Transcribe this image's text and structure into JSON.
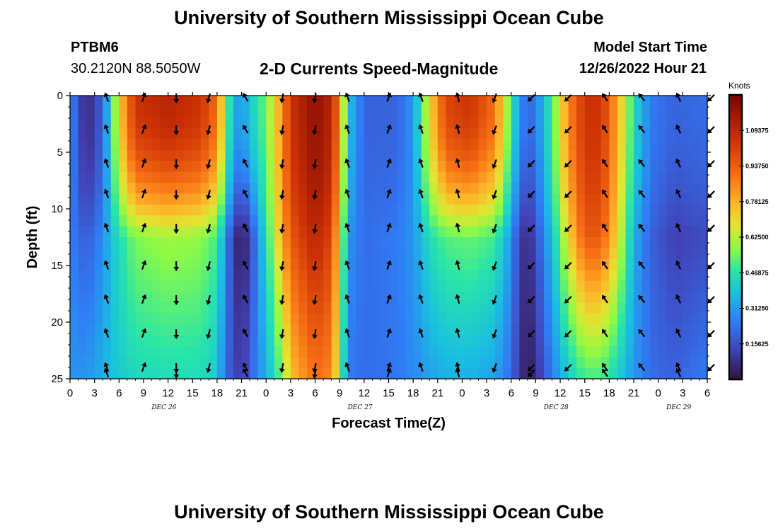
{
  "header": {
    "title": "University of Southern Mississippi Ocean Cube",
    "station_id": "PTBM6",
    "coordinates": "30.2120N  88.5050W",
    "product": "2-D Currents Speed-Magnitude",
    "model_start_label": "Model Start Time",
    "model_start_value": "12/26/2022 Hour 21"
  },
  "footer": {
    "title": "University of Southern Mississippi Ocean Cube"
  },
  "chart_data": {
    "type": "heatmap",
    "xlabel": "Forecast Time(Z)",
    "ylabel": "Depth (ft)",
    "ylim": [
      25,
      0
    ],
    "y_ticks": [
      0,
      5,
      10,
      15,
      20,
      25
    ],
    "x_hours": [
      0,
      3,
      6,
      9,
      12,
      15,
      18,
      21,
      24,
      27,
      30,
      33,
      36,
      39,
      42,
      45,
      48,
      51,
      54,
      57,
      60,
      63,
      66,
      69,
      72,
      75,
      78
    ],
    "x_tick_labels": [
      "0",
      "3",
      "6",
      "9",
      "12",
      "15",
      "18",
      "21",
      "0",
      "3",
      "6",
      "9",
      "12",
      "15",
      "18",
      "21",
      "0",
      "3",
      "6",
      "9",
      "12",
      "15",
      "18",
      "21",
      "0",
      "3",
      "6"
    ],
    "date_labels": [
      {
        "text": "DEC 26",
        "hour": 11.5
      },
      {
        "text": "DEC 27",
        "hour": 35.5
      },
      {
        "text": "DEC 28",
        "hour": 59.5
      },
      {
        "text": "DEC 29",
        "hour": 74.5
      }
    ],
    "colorbar": {
      "title": "Knots",
      "min": 0,
      "max": 1.25,
      "ticks": [
        "0.15625",
        "0.31250",
        "0.46875",
        "0.62500",
        "0.78125",
        "0.93750",
        "1.09375"
      ],
      "tick_values": [
        0.15625,
        0.3125,
        0.46875,
        0.625,
        0.78125,
        0.9375,
        1.09375
      ]
    },
    "speed_profiles_knots": [
      {
        "hour": 0,
        "surface": 0.28,
        "mid": 0.26,
        "bottom": 0.3
      },
      {
        "hour": 2,
        "surface": 0.05,
        "mid": 0.18,
        "bottom": 0.3
      },
      {
        "hour": 4,
        "surface": 0.2,
        "mid": 0.28,
        "bottom": 0.35
      },
      {
        "hour": 5,
        "surface": 0.45,
        "mid": 0.38,
        "bottom": 0.38
      },
      {
        "hour": 6,
        "surface": 0.72,
        "mid": 0.45,
        "bottom": 0.4
      },
      {
        "hour": 8,
        "surface": 1.05,
        "mid": 0.56,
        "bottom": 0.44
      },
      {
        "hour": 12,
        "surface": 1.1,
        "mid": 0.6,
        "bottom": 0.45
      },
      {
        "hour": 16,
        "surface": 1.05,
        "mid": 0.58,
        "bottom": 0.45
      },
      {
        "hour": 18,
        "surface": 0.9,
        "mid": 0.5,
        "bottom": 0.4
      },
      {
        "hour": 19,
        "surface": 0.6,
        "mid": 0.3,
        "bottom": 0.22
      },
      {
        "hour": 20,
        "surface": 0.35,
        "mid": 0.1,
        "bottom": 0.15
      },
      {
        "hour": 21,
        "surface": 0.3,
        "mid": 0.02,
        "bottom": 0.1
      },
      {
        "hour": 22,
        "surface": 0.4,
        "mid": 0.12,
        "bottom": 0.2
      },
      {
        "hour": 24,
        "surface": 0.55,
        "mid": 0.45,
        "bottom": 0.35
      },
      {
        "hour": 26,
        "surface": 0.85,
        "mid": 0.8,
        "bottom": 0.55
      },
      {
        "hour": 27,
        "surface": 1.05,
        "mid": 0.95,
        "bottom": 0.75
      },
      {
        "hour": 30,
        "surface": 1.2,
        "mid": 1.1,
        "bottom": 0.9
      },
      {
        "hour": 32,
        "surface": 1.1,
        "mid": 1.0,
        "bottom": 0.85
      },
      {
        "hour": 33,
        "surface": 0.85,
        "mid": 0.7,
        "bottom": 0.6
      },
      {
        "hour": 34,
        "surface": 0.4,
        "mid": 0.3,
        "bottom": 0.25
      },
      {
        "hour": 36,
        "surface": 0.2,
        "mid": 0.22,
        "bottom": 0.22
      },
      {
        "hour": 40,
        "surface": 0.2,
        "mid": 0.25,
        "bottom": 0.24
      },
      {
        "hour": 42,
        "surface": 0.3,
        "mid": 0.3,
        "bottom": 0.28
      },
      {
        "hour": 44,
        "surface": 0.7,
        "mid": 0.45,
        "bottom": 0.32
      },
      {
        "hour": 46,
        "surface": 1.0,
        "mid": 0.52,
        "bottom": 0.35
      },
      {
        "hour": 49,
        "surface": 1.05,
        "mid": 0.54,
        "bottom": 0.35
      },
      {
        "hour": 52,
        "surface": 0.9,
        "mid": 0.5,
        "bottom": 0.32
      },
      {
        "hour": 54,
        "surface": 0.5,
        "mid": 0.3,
        "bottom": 0.22
      },
      {
        "hour": 55,
        "surface": 0.3,
        "mid": 0.12,
        "bottom": 0.1
      },
      {
        "hour": 56,
        "surface": 0.2,
        "mid": 0.06,
        "bottom": 0.02
      },
      {
        "hour": 57,
        "surface": 0.25,
        "mid": 0.15,
        "bottom": 0.08
      },
      {
        "hour": 59,
        "surface": 0.5,
        "mid": 0.38,
        "bottom": 0.25
      },
      {
        "hour": 61,
        "surface": 0.85,
        "mid": 0.7,
        "bottom": 0.4
      },
      {
        "hour": 63,
        "surface": 1.05,
        "mid": 0.95,
        "bottom": 0.5
      },
      {
        "hour": 65,
        "surface": 1.05,
        "mid": 0.95,
        "bottom": 0.5
      },
      {
        "hour": 67,
        "surface": 0.8,
        "mid": 0.7,
        "bottom": 0.42
      },
      {
        "hour": 69,
        "surface": 0.45,
        "mid": 0.35,
        "bottom": 0.3
      },
      {
        "hour": 71,
        "surface": 0.25,
        "mid": 0.2,
        "bottom": 0.22
      },
      {
        "hour": 74,
        "surface": 0.2,
        "mid": 0.12,
        "bottom": 0.2
      },
      {
        "hour": 78,
        "surface": 0.22,
        "mid": 0.15,
        "bottom": 0.25
      }
    ],
    "arrow_hours": [
      4.5,
      9,
      13,
      17,
      21.5,
      26,
      30,
      34,
      39,
      43,
      47.5,
      52,
      56.5,
      61,
      65.5,
      70,
      74.5,
      78.5
    ],
    "arrow_depths": [
      0,
      3,
      6,
      8.7,
      11.7,
      15,
      18,
      21,
      24,
      24.5
    ],
    "arrow_direction_deg": [
      -20,
      20,
      180,
      195,
      -30,
      190,
      190,
      -20,
      20,
      -20,
      -15,
      200,
      225,
      225,
      -35,
      -40,
      -25,
      225
    ]
  }
}
